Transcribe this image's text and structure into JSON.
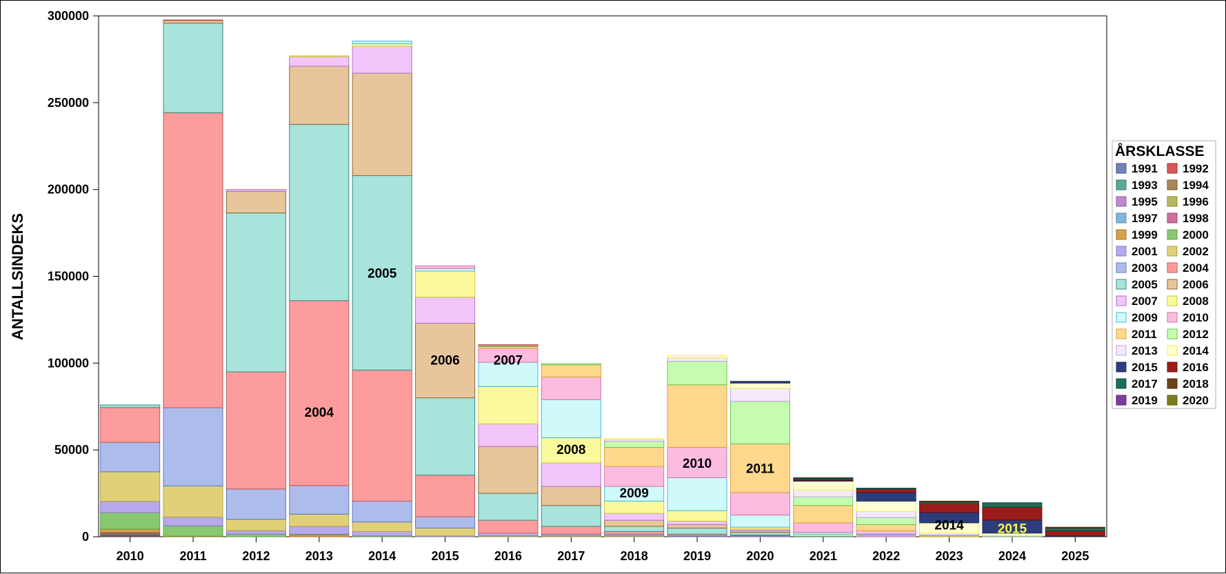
{
  "chart_data": {
    "type": "bar",
    "stacked": true,
    "ylabel": "ANTALLSINDEKS",
    "xlabel": "",
    "ylim": [
      0,
      300000
    ],
    "yticks": [
      0,
      50000,
      100000,
      150000,
      200000,
      250000,
      300000
    ],
    "categories": [
      "2010",
      "2011",
      "2012",
      "2013",
      "2014",
      "2015",
      "2016",
      "2017",
      "2018",
      "2019",
      "2020",
      "2021",
      "2022",
      "2023",
      "2024",
      "2025"
    ],
    "legend": {
      "title": "ÅRSKLASSE",
      "entries": [
        "1991",
        "1992",
        "1993",
        "1994",
        "1995",
        "1996",
        "1997",
        "1998",
        "1999",
        "2000",
        "2001",
        "2002",
        "2003",
        "2004",
        "2005",
        "2006",
        "2007",
        "2008",
        "2009",
        "2010",
        "2011",
        "2012",
        "2013",
        "2014",
        "2015",
        "2016",
        "2017",
        "2018",
        "2019",
        "2020"
      ]
    },
    "colors": {
      "1991": {
        "fill": "#7080b8",
        "stroke": "#40508a"
      },
      "1992": {
        "fill": "#d85858",
        "stroke": "#a03030"
      },
      "1993": {
        "fill": "#5aa898",
        "stroke": "#2a7868"
      },
      "1994": {
        "fill": "#a88858",
        "stroke": "#785828"
      },
      "1995": {
        "fill": "#c088d0",
        "stroke": "#9058a0"
      },
      "1996": {
        "fill": "#b8b860",
        "stroke": "#888830"
      },
      "1997": {
        "fill": "#80b8e0",
        "stroke": "#5088b0"
      },
      "1998": {
        "fill": "#d070a0",
        "stroke": "#a04070"
      },
      "1999": {
        "fill": "#d8a048",
        "stroke": "#a87018"
      },
      "2000": {
        "fill": "#88c870",
        "stroke": "#58a040"
      },
      "2001": {
        "fill": "#b8a8ec",
        "stroke": "#8878c0"
      },
      "2002": {
        "fill": "#e0d078",
        "stroke": "#b0a048"
      },
      "2003": {
        "fill": "#aebcec",
        "stroke": "#5878c0"
      },
      "2004": {
        "fill": "#fd9c9c",
        "stroke": "#c05858"
      },
      "2005": {
        "fill": "#a8e4dc",
        "stroke": "#3a8a80"
      },
      "2006": {
        "fill": "#e8c69c",
        "stroke": "#8a6838"
      },
      "2007": {
        "fill": "#f2c6fa",
        "stroke": "#b070c8"
      },
      "2008": {
        "fill": "#fafa9c",
        "stroke": "#c8c840"
      },
      "2009": {
        "fill": "#d0fafa",
        "stroke": "#40b8e0"
      },
      "2010": {
        "fill": "#fcbce0",
        "stroke": "#d070a8"
      },
      "2011": {
        "fill": "#fed88c",
        "stroke": "#e0a040"
      },
      "2012": {
        "fill": "#c6fcb0",
        "stroke": "#70c050"
      },
      "2013": {
        "fill": "#f4eafc",
        "stroke": "#c0a0e0"
      },
      "2014": {
        "fill": "#fefed4",
        "stroke": "#f0f040"
      },
      "2015": {
        "fill": "#2c3c7c",
        "stroke": "#1c2c5c"
      },
      "2016": {
        "fill": "#9c1c1c",
        "stroke": "#6c0c0c"
      },
      "2017": {
        "fill": "#1c6c5c",
        "stroke": "#0c4c3c"
      },
      "2018": {
        "fill": "#6c441c",
        "stroke": "#4c2c0c"
      },
      "2019": {
        "fill": "#7c3c9c",
        "stroke": "#5c1c7c"
      },
      "2020": {
        "fill": "#7c7c1c",
        "stroke": "#5c5c0c"
      }
    },
    "stacks": [
      {
        "year": "2010",
        "segments": [
          [
            "1991",
            300
          ],
          [
            "1992",
            300
          ],
          [
            "1993",
            300
          ],
          [
            "1994",
            300
          ],
          [
            "1995",
            300
          ],
          [
            "1996",
            300
          ],
          [
            "1997",
            300
          ],
          [
            "1998",
            300
          ],
          [
            "1999",
            2000
          ],
          [
            "2000",
            9500
          ],
          [
            "2001",
            6500
          ],
          [
            "2002",
            17000
          ],
          [
            "2003",
            17000
          ],
          [
            "2004",
            20000
          ],
          [
            "2005",
            1500
          ]
        ]
      },
      {
        "year": "2011",
        "segments": [
          [
            "1999",
            300
          ],
          [
            "2000",
            6000
          ],
          [
            "2001",
            5000
          ],
          [
            "2002",
            18000
          ],
          [
            "2003",
            45000
          ],
          [
            "2004",
            170000
          ],
          [
            "2005",
            51500
          ],
          [
            "2006",
            1500
          ],
          [
            "2004",
            400
          ]
        ]
      },
      {
        "year": "2012",
        "segments": [
          [
            "2000",
            1500
          ],
          [
            "2001",
            2000
          ],
          [
            "2002",
            6500
          ],
          [
            "2003",
            17500
          ],
          [
            "2004",
            67500
          ],
          [
            "2005",
            91500
          ],
          [
            "2006",
            12500
          ],
          [
            "2007",
            1000
          ]
        ]
      },
      {
        "year": "2013",
        "segments": [
          [
            "1999",
            1000
          ],
          [
            "2000",
            500
          ],
          [
            "2001",
            4500
          ],
          [
            "2002",
            7000
          ],
          [
            "2003",
            16500
          ],
          [
            "2004",
            106500
          ],
          [
            "2005",
            101500
          ],
          [
            "2006",
            33500
          ],
          [
            "2007",
            5500
          ],
          [
            "2008",
            500
          ]
        ]
      },
      {
        "year": "2014",
        "segments": [
          [
            "2000",
            500
          ],
          [
            "2001",
            2500
          ],
          [
            "2002",
            5500
          ],
          [
            "2003",
            12000
          ],
          [
            "2004",
            75500
          ],
          [
            "2005",
            112000
          ],
          [
            "2006",
            59000
          ],
          [
            "2007",
            15500
          ],
          [
            "2008",
            1500
          ],
          [
            "2009",
            1500
          ]
        ]
      },
      {
        "year": "2015",
        "segments": [
          [
            "2001",
            500
          ],
          [
            "2002",
            4500
          ],
          [
            "2003",
            6500
          ],
          [
            "2004",
            24000
          ],
          [
            "2005",
            44500
          ],
          [
            "2006",
            43000
          ],
          [
            "2007",
            15000
          ],
          [
            "2008",
            15000
          ],
          [
            "2009",
            1500
          ],
          [
            "2010",
            1500
          ]
        ]
      },
      {
        "year": "2016",
        "segments": [
          [
            "2002",
            500
          ],
          [
            "2003",
            1500
          ],
          [
            "2004",
            7500
          ],
          [
            "2005",
            15500
          ],
          [
            "2006",
            27000
          ],
          [
            "2007",
            13000
          ],
          [
            "2008",
            21500
          ],
          [
            "2009",
            14000
          ],
          [
            "2010",
            8000
          ],
          [
            "2011",
            1000
          ],
          [
            "2012",
            500
          ],
          [
            "2004",
            700
          ]
        ]
      },
      {
        "year": "2017",
        "segments": [
          [
            "2002",
            500
          ],
          [
            "2003",
            1000
          ],
          [
            "2004",
            4500
          ],
          [
            "2005",
            12000
          ],
          [
            "2006",
            11000
          ],
          [
            "2007",
            13500
          ],
          [
            "2008",
            14500
          ],
          [
            "2009",
            22000
          ],
          [
            "2010",
            13000
          ],
          [
            "2011",
            7000
          ],
          [
            "2012",
            700
          ]
        ]
      },
      {
        "year": "2018",
        "segments": [
          [
            "2002",
            500
          ],
          [
            "2003",
            1000
          ],
          [
            "2004",
            1500
          ],
          [
            "2005",
            3000
          ],
          [
            "2006",
            3500
          ],
          [
            "2007",
            4000
          ],
          [
            "2008",
            7000
          ],
          [
            "2009",
            8500
          ],
          [
            "2010",
            11500
          ],
          [
            "2011",
            11000
          ],
          [
            "2012",
            3500
          ],
          [
            "2013",
            1000
          ],
          [
            "2014",
            500
          ]
        ]
      },
      {
        "year": "2019",
        "segments": [
          [
            "2003",
            500
          ],
          [
            "2004",
            1000
          ],
          [
            "2005",
            3500
          ],
          [
            "2006",
            2000
          ],
          [
            "2007",
            2000
          ],
          [
            "2008",
            6000
          ],
          [
            "2009",
            19000
          ],
          [
            "2010",
            17500
          ],
          [
            "2011",
            36000
          ],
          [
            "2012",
            13500
          ],
          [
            "2013",
            2000
          ],
          [
            "2014",
            1500
          ]
        ]
      },
      {
        "year": "2020",
        "segments": [
          [
            "2003",
            500
          ],
          [
            "2004",
            500
          ],
          [
            "2005",
            1500
          ],
          [
            "2006",
            1000
          ],
          [
            "2007",
            1000
          ],
          [
            "2008",
            1000
          ],
          [
            "2009",
            7000
          ],
          [
            "2010",
            13000
          ],
          [
            "2011",
            28000
          ],
          [
            "2012",
            24500
          ],
          [
            "2013",
            7500
          ],
          [
            "2014",
            3000
          ],
          [
            "2015",
            1000
          ]
        ]
      },
      {
        "year": "2021",
        "segments": [
          [
            "2005",
            500
          ],
          [
            "2008",
            1000
          ],
          [
            "2009",
            1000
          ],
          [
            "2010",
            5500
          ],
          [
            "2011",
            10000
          ],
          [
            "2012",
            5000
          ],
          [
            "2013",
            4000
          ],
          [
            "2014",
            5000
          ],
          [
            "2015",
            500
          ],
          [
            "2016",
            1000
          ],
          [
            "2017",
            500
          ]
        ]
      },
      {
        "year": "2022",
        "segments": [
          [
            "2007",
            500
          ],
          [
            "2008",
            500
          ],
          [
            "2009",
            500
          ],
          [
            "2010",
            2000
          ],
          [
            "2011",
            3500
          ],
          [
            "2012",
            4000
          ],
          [
            "2013",
            3500
          ],
          [
            "2014",
            6000
          ],
          [
            "2015",
            5000
          ],
          [
            "2016",
            2000
          ],
          [
            "2017",
            500
          ]
        ]
      },
      {
        "year": "2023",
        "segments": [
          [
            "2011",
            500
          ],
          [
            "2012",
            500
          ],
          [
            "2013",
            1000
          ],
          [
            "2014",
            6000
          ],
          [
            "2015",
            6000
          ],
          [
            "2016",
            5000
          ],
          [
            "2017",
            1000
          ],
          [
            "2018",
            500
          ]
        ]
      },
      {
        "year": "2024",
        "segments": [
          [
            "2012",
            300
          ],
          [
            "2013",
            300
          ],
          [
            "2014",
            1500
          ],
          [
            "2015",
            7500
          ],
          [
            "2016",
            7500
          ],
          [
            "2017",
            2500
          ]
        ]
      },
      {
        "year": "2025",
        "segments": [
          [
            "2015",
            500
          ],
          [
            "2016",
            3000
          ],
          [
            "2017",
            1500
          ],
          [
            "2018",
            500
          ]
        ]
      }
    ],
    "annotations": [
      {
        "text": "2004",
        "year": "2013",
        "y": 72000,
        "color": "#000000"
      },
      {
        "text": "2005",
        "year": "2014",
        "y": 152000,
        "color": "#000000"
      },
      {
        "text": "2006",
        "year": "2015",
        "y": 102000,
        "color": "#000000"
      },
      {
        "text": "2007",
        "year": "2016",
        "y": 102000,
        "color": "#000000"
      },
      {
        "text": "2008",
        "year": "2017",
        "y": 50500,
        "color": "#000000"
      },
      {
        "text": "2009",
        "year": "2018",
        "y": 25500,
        "color": "#000000"
      },
      {
        "text": "2010",
        "year": "2019",
        "y": 42500,
        "color": "#000000"
      },
      {
        "text": "2011",
        "year": "2020",
        "y": 39500,
        "color": "#000000"
      },
      {
        "text": "2014",
        "year": "2023",
        "y": 7000,
        "color": "#000000"
      },
      {
        "text": "2015",
        "year": "2024",
        "y": 5000,
        "color": "#ffff40"
      }
    ]
  }
}
